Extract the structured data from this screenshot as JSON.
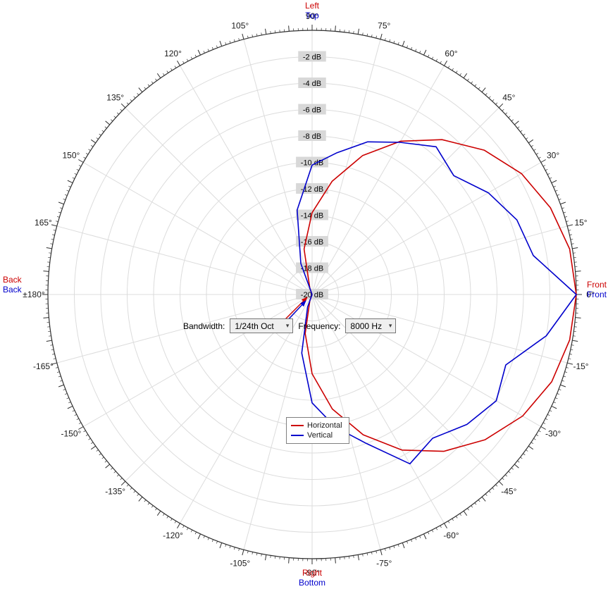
{
  "colors": {
    "red": "#cc0000",
    "blue": "#0000cc",
    "grid": "#dcdcdc",
    "axis": "#303030",
    "label_bg": "#d8d8d8"
  },
  "controls": {
    "bandwidth_label": "Bandwidth:",
    "bandwidth_value": "1/24th Oct",
    "frequency_label": "Frequency:",
    "frequency_value": "8000 Hz"
  },
  "chart_data": {
    "type": "line",
    "projection": "polar",
    "title": "",
    "angle_unit": "deg",
    "zero_angle_position": "right",
    "radial_axis": {
      "min": -20,
      "max": 0,
      "step": 2,
      "ring_labels": [
        "-2 dB",
        "-4 dB",
        "-6 dB",
        "-8 dB",
        "-10 dB",
        "-12 dB",
        "-14 dB",
        "-16 dB",
        "-18 dB",
        "-20 dB"
      ]
    },
    "angle_ticks": [
      {
        "a": 90,
        "t": "90°"
      },
      {
        "a": 75,
        "t": "75°"
      },
      {
        "a": 60,
        "t": "60°"
      },
      {
        "a": 45,
        "t": "45°"
      },
      {
        "a": 30,
        "t": "30°"
      },
      {
        "a": 15,
        "t": "15°"
      },
      {
        "a": 0,
        "t": "0°"
      },
      {
        "a": -15,
        "t": "-15°"
      },
      {
        "a": -30,
        "t": "-30°"
      },
      {
        "a": -45,
        "t": "-45°"
      },
      {
        "a": -60,
        "t": "-60°"
      },
      {
        "a": -75,
        "t": "-75°"
      },
      {
        "a": -90,
        "t": "-90°"
      },
      {
        "a": -105,
        "t": "-105°"
      },
      {
        "a": -120,
        "t": "-120°"
      },
      {
        "a": -135,
        "t": "-135°"
      },
      {
        "a": -150,
        "t": "-150°"
      },
      {
        "a": -165,
        "t": "-165°"
      },
      {
        "a": 180,
        "t": "±180°"
      },
      {
        "a": 165,
        "t": "165°"
      },
      {
        "a": 150,
        "t": "150°"
      },
      {
        "a": 135,
        "t": "135°"
      },
      {
        "a": 120,
        "t": "120°"
      },
      {
        "a": 105,
        "t": "105°"
      }
    ],
    "direction_labels": {
      "top": {
        "red": "Left",
        "blue": "Top"
      },
      "bottom": {
        "red": "Right",
        "blue": "Bottom"
      },
      "left": {
        "red": "Back",
        "blue": "Back"
      },
      "right": {
        "red": "Front",
        "blue": "Front"
      }
    },
    "angles": [
      -180,
      -170,
      -160,
      -150,
      -140,
      -130,
      -120,
      -110,
      -100,
      -90,
      -80,
      -70,
      -60,
      -50,
      -40,
      -30,
      -20,
      -10,
      0,
      10,
      20,
      30,
      40,
      50,
      60,
      70,
      80,
      90,
      100,
      110,
      120,
      130,
      140,
      150,
      160,
      170,
      180
    ],
    "series": [
      {
        "name": "Horizontal",
        "color": "#cc0000",
        "values": [
          -20,
          -20,
          -20,
          -20,
          -20,
          -20,
          -20,
          -19.5,
          -17,
          -14,
          -11.2,
          -8.7,
          -6.4,
          -4.5,
          -2.9,
          -1.6,
          -0.7,
          -0.2,
          0,
          -0.2,
          -0.8,
          -1.7,
          -3,
          -4.7,
          -6.6,
          -8.8,
          -11.3,
          -13.8,
          -16.5,
          -19.5,
          -20,
          -20,
          -20,
          -20,
          -20,
          -20,
          -20
        ]
      },
      {
        "name": "Vertical",
        "color": "#0000cc",
        "values": [
          -20,
          -20,
          -20,
          -20,
          -20,
          -20,
          -20,
          -19,
          -15.5,
          -11.8,
          -9.8,
          -8,
          -5.2,
          -5.8,
          -4.7,
          -3.9,
          -4.4,
          -2,
          0,
          -3,
          -3.5,
          -4.6,
          -6,
          -5.4,
          -6.7,
          -7.7,
          -9.1,
          -10.2,
          -13.5,
          -17.5,
          -20,
          -20,
          -20,
          -20,
          -20,
          -20,
          -20
        ]
      }
    ],
    "legend_position": "bottom-center-inside"
  }
}
